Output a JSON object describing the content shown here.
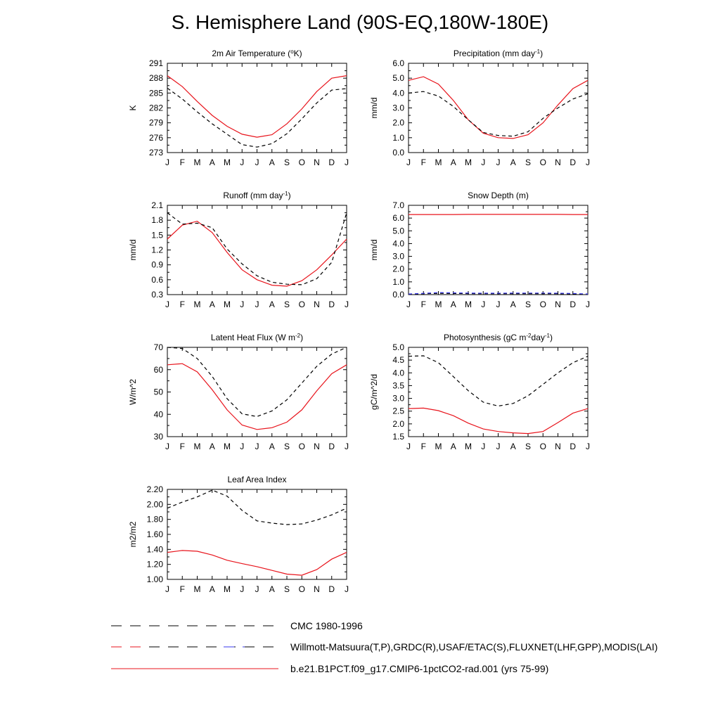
{
  "title": "S. Hemisphere Land (90S-EQ,180W-180E)",
  "months": [
    "J",
    "F",
    "M",
    "A",
    "M",
    "J",
    "J",
    "A",
    "S",
    "O",
    "N",
    "D",
    "J"
  ],
  "colors": {
    "model": "#e8141c",
    "obs": "#000000",
    "obs_snow_alt": "#3a3aee"
  },
  "legend": [
    {
      "label": "CMC 1980-1996",
      "style": "dashed-black"
    },
    {
      "label": "Willmott-Matsuura(T,P),GRDC(R),USAF/ETAC(S),FLUXNET(LHF,GPP),MODIS(LAI)",
      "style": "dashed-mixed"
    },
    {
      "label": "b.e21.B1PCT.f09_g17.CMIP6-1pctCO2-rad.001 (yrs 75-99)",
      "style": "solid-red"
    }
  ],
  "chart_data": [
    {
      "type": "line",
      "title": "2m Air Temperature (",
      "title_sup": "o",
      "title_after": "K)",
      "ylabel": "K",
      "ylim": [
        273,
        291
      ],
      "yticks": [
        "273",
        "276",
        "279",
        "282",
        "285",
        "288",
        "291"
      ],
      "series": [
        {
          "name": "b.e21.B1PCT.f09_g17.CMIP6-1pctCO2-rad.001 (yrs 75-99)",
          "style": "solid",
          "color": "#e8141c",
          "values": [
            288.5,
            286.3,
            283.3,
            280.5,
            278.3,
            276.7,
            276.1,
            276.6,
            278.8,
            281.8,
            285.3,
            288.0,
            288.5
          ]
        },
        {
          "name": "Willmott-Matsuura(T,P),GRDC(R),USAF/ETAC(S),FLUXNET(LHF,GPP),MODIS(LAI)",
          "style": "dashed",
          "color": "#000000",
          "values": [
            286.0,
            283.8,
            281.2,
            278.8,
            276.7,
            274.6,
            274.1,
            274.8,
            276.8,
            279.8,
            283.0,
            285.6,
            285.9
          ]
        }
      ]
    },
    {
      "type": "line",
      "title": "Precipitation (mm day",
      "title_sup": "-1",
      "title_after": ")",
      "ylabel": "mm/d",
      "ylim": [
        0,
        6
      ],
      "yticks": [
        "0.0",
        "1.0",
        "2.0",
        "3.0",
        "4.0",
        "5.0",
        "6.0"
      ],
      "series": [
        {
          "name": "b.e21.B1PCT.f09_g17.CMIP6-1pctCO2-rad.001 (yrs 75-99)",
          "style": "solid",
          "color": "#e8141c",
          "values": [
            4.85,
            5.1,
            4.6,
            3.5,
            2.2,
            1.3,
            1.0,
            0.95,
            1.2,
            2.0,
            3.2,
            4.3,
            4.85
          ]
        },
        {
          "name": "Willmott-Matsuura(T,P),GRDC(R),USAF/ETAC(S),FLUXNET(LHF,GPP),MODIS(LAI)",
          "style": "dashed",
          "color": "#000000",
          "values": [
            4.0,
            4.1,
            3.8,
            3.1,
            2.2,
            1.35,
            1.15,
            1.1,
            1.4,
            2.3,
            3.0,
            3.6,
            3.95
          ]
        }
      ]
    },
    {
      "type": "line",
      "title": "Runoff (mm day",
      "title_sup": "-1",
      "title_after": ")",
      "ylabel": "mm/d",
      "ylim": [
        0.3,
        2.1
      ],
      "yticks": [
        "0.3",
        "0.6",
        "0.9",
        "1.2",
        "1.5",
        "1.8",
        "2.1"
      ],
      "series": [
        {
          "name": "b.e21.B1PCT.f09_g17.CMIP6-1pctCO2-rad.001 (yrs 75-99)",
          "style": "solid",
          "color": "#e8141c",
          "values": [
            1.42,
            1.7,
            1.78,
            1.55,
            1.15,
            0.8,
            0.6,
            0.49,
            0.47,
            0.58,
            0.8,
            1.1,
            1.42
          ]
        },
        {
          "name": "GRDC(R)",
          "style": "dashed",
          "color": "#000000",
          "values": [
            1.95,
            1.72,
            1.74,
            1.65,
            1.22,
            0.92,
            0.68,
            0.55,
            0.51,
            0.5,
            0.62,
            0.95,
            1.95
          ]
        }
      ]
    },
    {
      "type": "line",
      "title": "Snow Depth (m)",
      "title_sup": "",
      "title_after": "",
      "ylabel": "mm/d",
      "ylim": [
        0,
        7
      ],
      "yticks": [
        "0.0",
        "1.0",
        "2.0",
        "3.0",
        "4.0",
        "5.0",
        "6.0",
        "7.0"
      ],
      "series": [
        {
          "name": "b.e21.B1PCT.f09_g17.CMIP6-1pctCO2-rad.001 (yrs 75-99)",
          "style": "solid",
          "color": "#e8141c",
          "values": [
            6.28,
            6.28,
            6.28,
            6.28,
            6.29,
            6.29,
            6.29,
            6.29,
            6.29,
            6.29,
            6.29,
            6.28,
            6.28
          ]
        },
        {
          "name": "CMC 1980-1996",
          "style": "dashed",
          "color": "#000000",
          "values": [
            0.04,
            0.07,
            0.1,
            0.09,
            0.08,
            0.07,
            0.07,
            0.07,
            0.07,
            0.07,
            0.07,
            0.06,
            0.04
          ]
        },
        {
          "name": "USAF/ETAC(S)",
          "style": "dashed",
          "color": "#3a3aee",
          "values": [
            0.05,
            0.1,
            0.16,
            0.14,
            0.12,
            0.11,
            0.11,
            0.12,
            0.12,
            0.12,
            0.11,
            0.09,
            0.05
          ]
        }
      ]
    },
    {
      "type": "line",
      "title": "Latent Heat Flux (W m",
      "title_sup": "-2",
      "title_after": ")",
      "ylabel": "W/m^2",
      "ylim": [
        30,
        70
      ],
      "yticks": [
        "30",
        "40",
        "50",
        "60",
        "70"
      ],
      "series": [
        {
          "name": "b.e21.B1PCT.f09_g17.CMIP6-1pctCO2-rad.001 (yrs 75-99)",
          "style": "solid",
          "color": "#e8141c",
          "values": [
            62.2,
            62.7,
            59.0,
            51.0,
            42.0,
            35.2,
            33.2,
            34.0,
            36.5,
            42.0,
            50.5,
            58.2,
            62.2
          ]
        },
        {
          "name": "FLUXNET(LHF,GPP)",
          "style": "dashed",
          "color": "#000000",
          "values": [
            70.0,
            69.5,
            65.0,
            57.0,
            47.0,
            40.2,
            39.0,
            41.5,
            46.5,
            54.0,
            61.5,
            67.0,
            70.0
          ]
        }
      ]
    },
    {
      "type": "line",
      "title": "Photosynthesis (gC m",
      "title_sup": "-2",
      "title_mid": "day",
      "title_sup2": "-1",
      "title_after": ")",
      "ylabel": "gC/m^2/d",
      "ylim": [
        1.5,
        5.0
      ],
      "yticks": [
        "1.5",
        "2.0",
        "2.5",
        "3.0",
        "3.5",
        "4.0",
        "4.5",
        "5.0"
      ],
      "series": [
        {
          "name": "b.e21.B1PCT.f09_g17.CMIP6-1pctCO2-rad.001 (yrs 75-99)",
          "style": "solid",
          "color": "#e8141c",
          "values": [
            2.6,
            2.62,
            2.52,
            2.32,
            2.03,
            1.8,
            1.7,
            1.65,
            1.62,
            1.7,
            2.05,
            2.42,
            2.6
          ]
        },
        {
          "name": "FLUXNET(LHF,GPP)",
          "style": "dashed",
          "color": "#000000",
          "values": [
            4.65,
            4.67,
            4.4,
            3.85,
            3.3,
            2.85,
            2.7,
            2.8,
            3.1,
            3.55,
            4.0,
            4.4,
            4.65
          ]
        }
      ]
    },
    {
      "type": "line",
      "title": "Leaf Area Index",
      "title_sup": "",
      "title_after": "",
      "ylabel": "m2/m2",
      "ylim": [
        1.0,
        2.2
      ],
      "yticks": [
        "1.00",
        "1.20",
        "1.40",
        "1.60",
        "1.80",
        "2.00",
        "2.20"
      ],
      "series": [
        {
          "name": "b.e21.B1PCT.f09_g17.CMIP6-1pctCO2-rad.001 (yrs 75-99)",
          "style": "solid",
          "color": "#e8141c",
          "values": [
            1.36,
            1.385,
            1.375,
            1.325,
            1.255,
            1.21,
            1.17,
            1.12,
            1.07,
            1.055,
            1.13,
            1.27,
            1.36
          ]
        },
        {
          "name": "MODIS(LAI)",
          "style": "dashed",
          "color": "#000000",
          "values": [
            1.95,
            2.03,
            2.1,
            2.19,
            2.11,
            1.92,
            1.78,
            1.75,
            1.73,
            1.74,
            1.79,
            1.86,
            1.95
          ]
        }
      ]
    }
  ]
}
